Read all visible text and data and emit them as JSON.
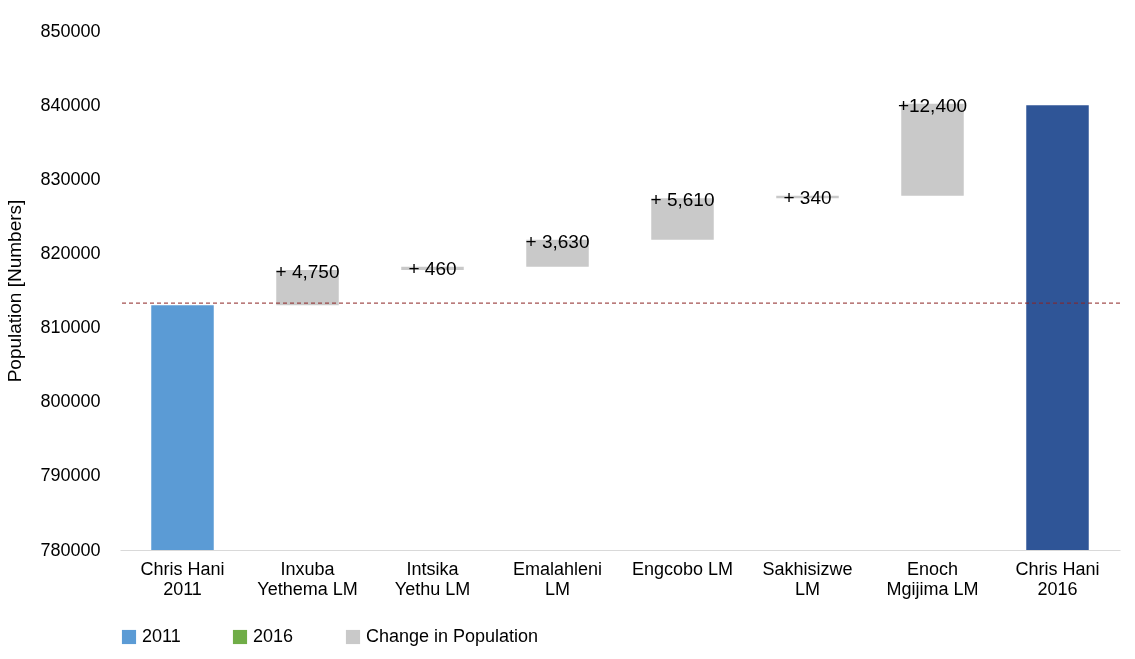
{
  "chart_data": {
    "type": "bar",
    "ylabel": "Population [Numbers]",
    "categories": [
      "Chris Hani 2011",
      "Inxuba Yethema LM",
      "Intsika Yethu LM",
      "Emalahleni LM",
      "Engcobo LM",
      "Sakhisizwe LM",
      "Enoch Mgijima LM",
      "Chris Hani 2016"
    ],
    "series": [
      {
        "name": "2011",
        "color": "#5b9bd5",
        "values": [
          813000,
          null,
          null,
          null,
          null,
          null,
          null,
          null
        ]
      },
      {
        "name": "2016",
        "color": "#70ad47",
        "values": [
          null,
          null,
          null,
          null,
          null,
          null,
          null,
          null
        ]
      },
      {
        "name": "Change in Population",
        "color": "#c9c9c9",
        "values": [
          null,
          4750,
          460,
          3630,
          5610,
          340,
          12400,
          null
        ],
        "base": [
          null,
          813000,
          817750,
          818210,
          821840,
          827450,
          827790,
          null
        ],
        "value_labels": [
          null,
          "+ 4,750",
          "+ 460",
          "+ 3,630",
          "+ 5,610",
          "+ 340",
          "+12,400",
          null
        ]
      },
      {
        "color": "#2f5597",
        "values": [
          null,
          null,
          null,
          null,
          null,
          null,
          null,
          840000
        ]
      }
    ],
    "ylim": [
      780000,
      850000
    ],
    "yticks": [
      780000,
      790000,
      800000,
      810000,
      820000,
      830000,
      840000,
      850000
    ],
    "ref_lines": [
      {
        "axis": "y",
        "value": 813300,
        "color": "#8b2323",
        "line_style": "dashed"
      }
    ],
    "grid": false,
    "legend": "bottom"
  }
}
